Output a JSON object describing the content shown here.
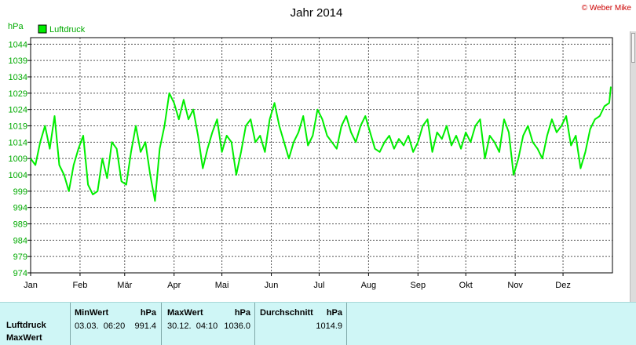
{
  "header": {
    "title": "Jahr 2014",
    "copyright": "© Weber Mike"
  },
  "chart_data": {
    "type": "line",
    "title": "Jahr 2014",
    "unit_label": "hPa",
    "legend": "Luftdruck",
    "legend_placement": "top-left",
    "grid": true,
    "line_color": "#00ee00",
    "ylim": [
      974,
      1046
    ],
    "y_ticks": [
      974,
      979,
      984,
      989,
      994,
      999,
      1004,
      1009,
      1014,
      1019,
      1024,
      1029,
      1034,
      1039,
      1044
    ],
    "x_ticks": [
      "Jan",
      "Feb",
      "Mär",
      "Apr",
      "Mai",
      "Jun",
      "Jul",
      "Aug",
      "Sep",
      "Okt",
      "Nov",
      "Dez"
    ],
    "x": [
      0,
      3,
      6,
      9,
      12,
      15,
      18,
      21,
      24,
      27,
      30,
      33,
      36,
      39,
      42,
      45,
      48,
      51,
      54,
      57,
      60,
      63,
      66,
      69,
      72,
      75,
      78,
      81,
      84,
      87,
      90,
      93,
      96,
      99,
      102,
      105,
      108,
      111,
      114,
      117,
      120,
      123,
      126,
      129,
      132,
      135,
      138,
      141,
      144,
      147,
      150,
      153,
      156,
      159,
      162,
      165,
      168,
      171,
      174,
      177,
      180,
      183,
      186,
      189,
      192,
      195,
      198,
      201,
      204,
      207,
      210,
      213,
      216,
      219,
      222,
      225,
      228,
      231,
      234,
      237,
      240,
      243,
      246,
      249,
      252,
      255,
      258,
      261,
      264,
      267,
      270,
      273,
      276,
      279,
      282,
      285,
      288,
      291,
      294,
      297,
      300,
      303,
      306,
      309,
      312,
      315,
      318,
      321,
      324,
      327,
      330,
      333,
      336,
      339,
      342,
      345,
      348,
      351,
      354,
      357,
      360,
      363,
      364
    ],
    "values": [
      1009,
      1007,
      1014,
      1019,
      1012,
      1022,
      1007,
      1004,
      999,
      1007,
      1012,
      1016,
      1001,
      998,
      999,
      1009,
      1003,
      1014,
      1012,
      1002,
      1001,
      1011,
      1019,
      1011,
      1014,
      1004,
      996,
      1012,
      1019,
      1029,
      1026,
      1021,
      1027,
      1021,
      1024,
      1016,
      1006,
      1012,
      1017,
      1021,
      1011,
      1016,
      1014,
      1004,
      1011,
      1019,
      1021,
      1014,
      1016,
      1011,
      1021,
      1026,
      1019,
      1014,
      1009,
      1014,
      1017,
      1022,
      1013,
      1016,
      1024,
      1021,
      1016,
      1014,
      1012,
      1019,
      1022,
      1017,
      1014,
      1019,
      1022,
      1017,
      1012,
      1011,
      1014,
      1016,
      1012,
      1015,
      1013,
      1016,
      1011,
      1014,
      1019,
      1021,
      1011,
      1017,
      1015,
      1019,
      1013,
      1016,
      1012,
      1017,
      1014,
      1019,
      1021,
      1009,
      1016,
      1014,
      1011,
      1021,
      1017,
      1004,
      1009,
      1016,
      1019,
      1014,
      1012,
      1009,
      1016,
      1021,
      1017,
      1019,
      1022,
      1013,
      1016,
      1006,
      1011,
      1018,
      1021,
      1022,
      1025,
      1026,
      1031
    ]
  },
  "stats": {
    "row1_label": "Luftdruck",
    "row2_label": "MaxWert",
    "min_head": "MinWert",
    "min_unit": "hPa",
    "min_datetime": "03.03.  06:20",
    "min_value": "991.4",
    "max_head": "MaxWert",
    "max_unit": "hPa",
    "max_datetime": "30.12.  04:10",
    "max_value": "1036.0",
    "avg_head": "Durchschnitt",
    "avg_unit": "hPa",
    "avg_value": "1014.9"
  }
}
